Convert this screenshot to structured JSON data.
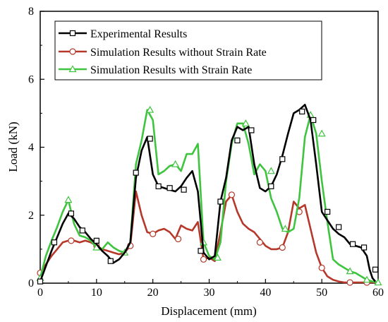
{
  "chart_data": {
    "type": "line",
    "title": "",
    "xlabel": "Displacement (mm)",
    "ylabel": "Load (kN)",
    "xlim": [
      0,
      60
    ],
    "ylim": [
      0,
      8
    ],
    "xticks": [
      "0",
      "10",
      "20",
      "30",
      "40",
      "50",
      "60"
    ],
    "yticks": [
      "0",
      "2",
      "4",
      "6",
      "8"
    ],
    "grid": false,
    "legend_position": "top-left",
    "series": [
      {
        "name": "Experimental Results",
        "color": "#000000",
        "marker": "square",
        "x": [
          0,
          1,
          2,
          3,
          4,
          5,
          6,
          7,
          8,
          9,
          10,
          11,
          12,
          13,
          14,
          15,
          16,
          17,
          18,
          19,
          20,
          21,
          22,
          23,
          24,
          25,
          26,
          27,
          28,
          29,
          30,
          31,
          32,
          33,
          34,
          35,
          36,
          37,
          38,
          39,
          40,
          41,
          42,
          43,
          44,
          45,
          46,
          47,
          48,
          49,
          50,
          51,
          52,
          53,
          54,
          55,
          56,
          57,
          58,
          58.5,
          59,
          59.5
        ],
        "y": [
          0.05,
          0.5,
          0.95,
          1.35,
          1.75,
          2.05,
          1.9,
          1.65,
          1.5,
          1.3,
          1.15,
          0.95,
          0.8,
          0.6,
          0.7,
          0.9,
          1.2,
          3.1,
          3.9,
          4.3,
          3.2,
          2.85,
          2.8,
          2.75,
          2.7,
          2.85,
          3.1,
          3.3,
          2.7,
          0.9,
          0.7,
          0.8,
          2.4,
          3.1,
          4.2,
          4.6,
          4.5,
          4.6,
          3.5,
          2.8,
          2.7,
          2.85,
          3.2,
          3.75,
          4.4,
          5.0,
          5.1,
          5.25,
          4.8,
          3.5,
          2.1,
          1.85,
          1.6,
          1.45,
          1.35,
          1.15,
          1.1,
          1.05,
          0.8,
          0.4,
          0.15,
          0.05
        ],
        "markers_x": [
          0,
          2.5,
          5.5,
          7.5,
          10,
          12.5,
          17,
          19.5,
          21,
          23,
          25.5,
          28.5,
          32,
          35,
          37.5,
          41,
          43,
          46.5,
          48.5,
          51,
          53,
          55.5,
          57.5,
          59.5
        ],
        "markers_y": [
          0.05,
          1.2,
          2.05,
          1.55,
          1.25,
          0.65,
          3.25,
          4.25,
          2.85,
          2.8,
          2.75,
          0.95,
          2.4,
          4.2,
          4.5,
          2.85,
          3.65,
          5.05,
          4.8,
          2.1,
          1.65,
          1.15,
          1.05,
          0.4
        ]
      },
      {
        "name": "Simulation Results without Strain Rate",
        "color": "#b5382a",
        "marker": "circle",
        "x": [
          0,
          1,
          2,
          3,
          4,
          5,
          6,
          7,
          8,
          9,
          10,
          11,
          12,
          13,
          14,
          15,
          16,
          17,
          18,
          19,
          20,
          21,
          22,
          23,
          24,
          25,
          26,
          27,
          28,
          29,
          30,
          31,
          32,
          33,
          34,
          35,
          36,
          37,
          38,
          39,
          40,
          41,
          42,
          43,
          44,
          45,
          46,
          47,
          48,
          49,
          50,
          51,
          52,
          53,
          54,
          55,
          56,
          57,
          58,
          59,
          60
        ],
        "y": [
          0.3,
          0.55,
          0.8,
          1.0,
          1.2,
          1.25,
          1.25,
          1.2,
          1.25,
          1.2,
          1.1,
          1.0,
          0.95,
          0.9,
          0.85,
          0.9,
          1.1,
          2.7,
          2.0,
          1.5,
          1.45,
          1.55,
          1.6,
          1.5,
          1.3,
          1.7,
          1.6,
          1.55,
          1.8,
          0.7,
          0.75,
          0.65,
          1.5,
          2.4,
          2.6,
          2.1,
          1.75,
          1.6,
          1.5,
          1.3,
          1.1,
          1.0,
          1.0,
          1.05,
          1.5,
          2.4,
          2.2,
          2.3,
          1.6,
          0.9,
          0.45,
          0.2,
          0.1,
          0.05,
          0.02,
          0.02,
          0.02,
          0.02,
          0.02,
          0.02,
          0.02
        ],
        "markers_x": [
          0,
          5.5,
          10,
          16,
          20,
          24.5,
          29,
          34,
          39,
          43,
          46,
          50,
          55,
          58
        ],
        "markers_y": [
          0.3,
          1.25,
          1.1,
          1.1,
          1.45,
          1.3,
          0.7,
          2.6,
          1.2,
          1.05,
          2.1,
          0.45,
          0.02,
          0.02
        ]
      },
      {
        "name": "Simulation Results with Strain Rate",
        "color": "#3ec43e",
        "marker": "triangle",
        "x": [
          0,
          1,
          2,
          3,
          4,
          5,
          6,
          7,
          8,
          9,
          10,
          11,
          12,
          13,
          14,
          15,
          16,
          17,
          18,
          19,
          20,
          21,
          22,
          23,
          24,
          25,
          26,
          27,
          28,
          29,
          30,
          31,
          32,
          33,
          34,
          35,
          36,
          37,
          38,
          39,
          40,
          41,
          42,
          43,
          44,
          45,
          46,
          47,
          48,
          49,
          50,
          51,
          52,
          53,
          54,
          55,
          56,
          57,
          58,
          59,
          60
        ],
        "y": [
          0.15,
          0.8,
          1.25,
          1.65,
          2.1,
          2.45,
          1.75,
          1.4,
          1.35,
          1.25,
          1.05,
          1.0,
          1.2,
          1.05,
          0.95,
          0.9,
          1.2,
          3.5,
          4.2,
          5.1,
          4.8,
          3.2,
          3.3,
          3.45,
          3.5,
          3.3,
          3.8,
          3.8,
          4.1,
          1.2,
          0.8,
          0.7,
          1.2,
          3.0,
          4.1,
          4.7,
          4.7,
          4.1,
          3.2,
          3.5,
          3.3,
          2.5,
          2.1,
          1.6,
          1.5,
          1.6,
          2.5,
          4.3,
          4.95,
          4.4,
          3.0,
          1.8,
          0.7,
          0.55,
          0.45,
          0.35,
          0.3,
          0.2,
          0.1,
          0.05,
          0.02
        ],
        "markers_x": [
          0,
          5,
          10,
          15,
          19.5,
          24,
          29,
          31.5,
          36.5,
          41,
          43.5,
          48,
          50,
          55,
          58,
          60
        ],
        "markers_y": [
          0.15,
          2.45,
          1.05,
          0.9,
          5.1,
          3.5,
          1.2,
          0.75,
          4.7,
          3.3,
          1.6,
          4.95,
          4.4,
          0.35,
          0.1,
          0.02
        ]
      }
    ]
  }
}
